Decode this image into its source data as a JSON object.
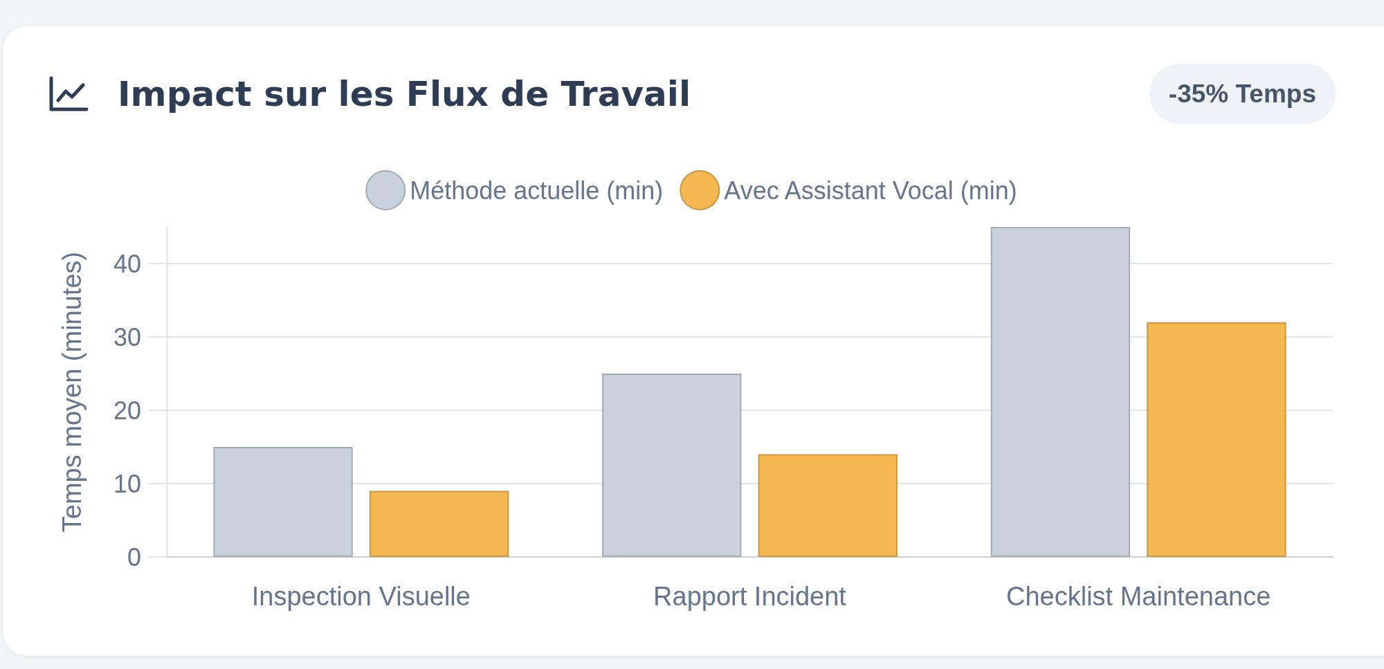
{
  "chart_data": {
    "type": "bar",
    "title": "Impact sur les Flux de Travail",
    "annotations": [
      "-35% Temps"
    ],
    "ylabel": "Temps moyen (minutes)",
    "categories": [
      "Inspection Visuelle",
      "Rapport Incident",
      "Checklist Maintenance"
    ],
    "series": [
      {
        "name": "Méthode actuelle (min)",
        "color": "#c9d1dc",
        "values": [
          15,
          25,
          45
        ]
      },
      {
        "name": "Avec Assistant Vocal (min)",
        "color": "#f5b850",
        "values": [
          9,
          14,
          32
        ]
      }
    ],
    "ylim": [
      0,
      45
    ],
    "yticks": [
      0,
      10,
      20,
      30,
      40
    ],
    "grid": "y",
    "legend": "top"
  }
}
